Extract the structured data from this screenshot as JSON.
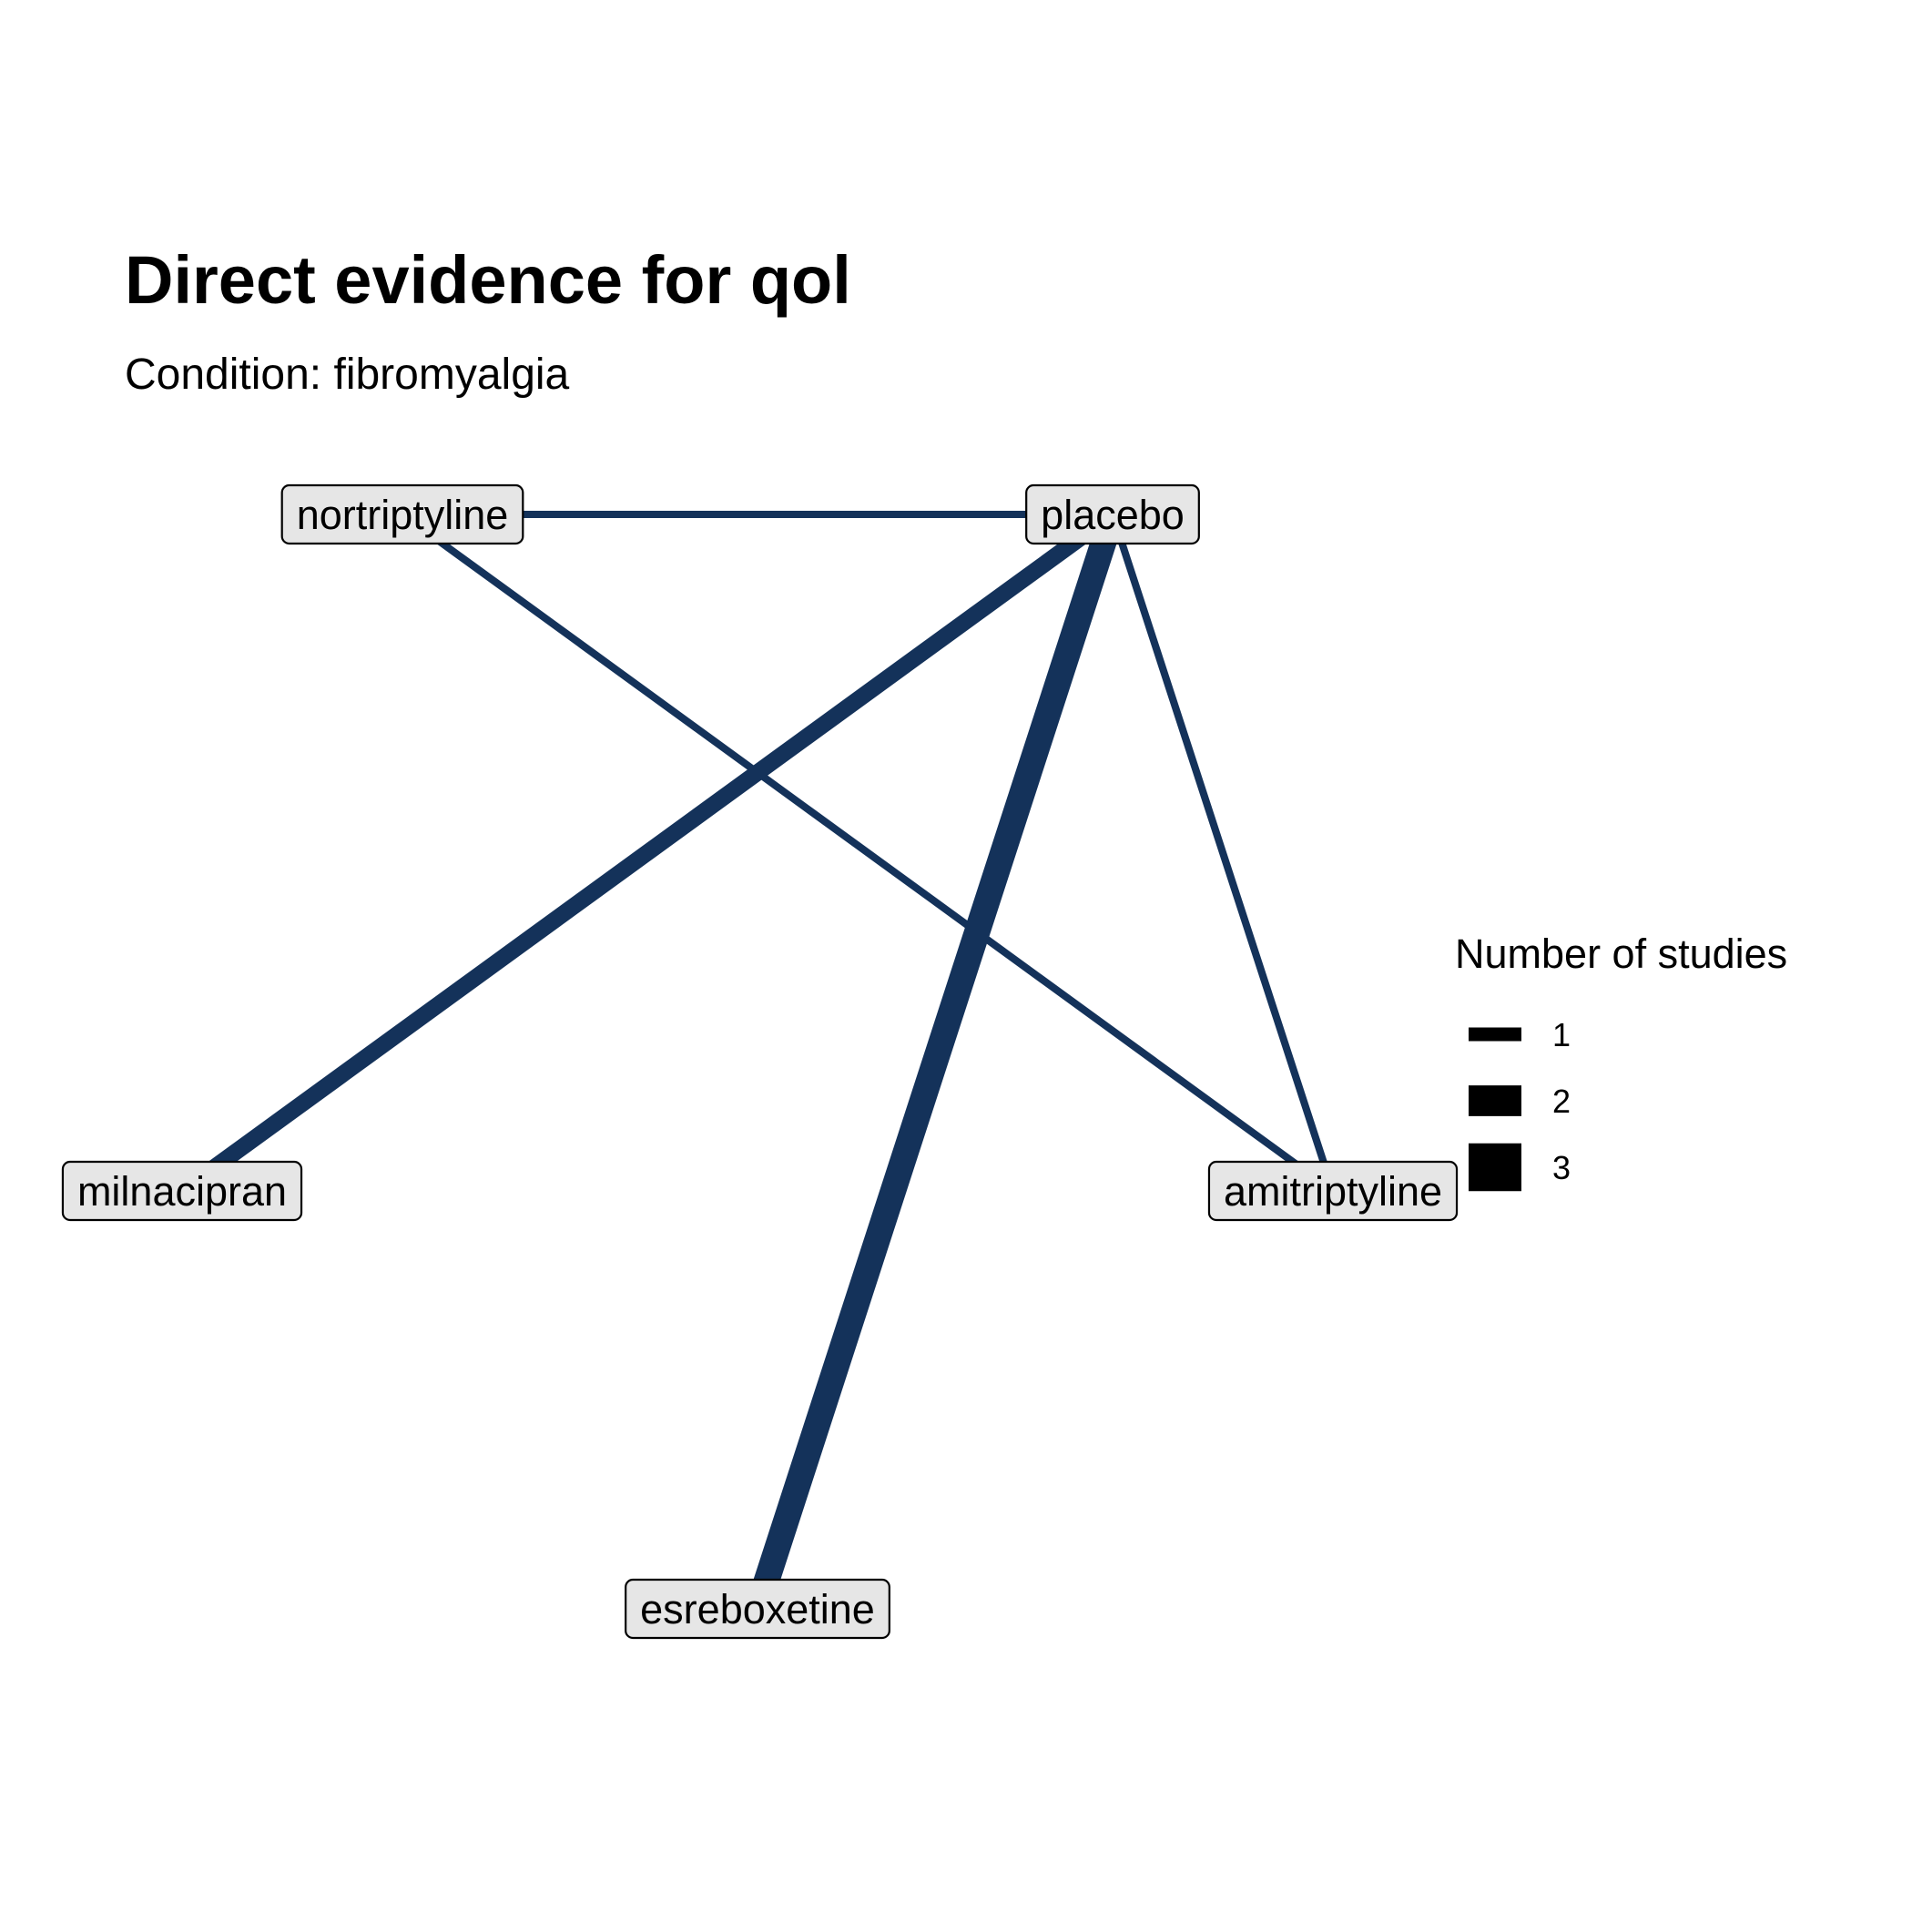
{
  "title": "Direct evidence for qol",
  "subtitle": "Condition: fibromyalgia",
  "colors": {
    "edge": "#14325a",
    "node_fill": "#e6e6e6",
    "node_border": "#000000",
    "legend_key": "#000000"
  },
  "nodes": [
    {
      "id": "nortriptyline",
      "label": "nortriptyline"
    },
    {
      "id": "placebo",
      "label": "placebo"
    },
    {
      "id": "milnacipran",
      "label": "milnacipran"
    },
    {
      "id": "amitriptyline",
      "label": "amitriptyline"
    },
    {
      "id": "esreboxetine",
      "label": "esreboxetine"
    }
  ],
  "edges": [
    {
      "from": "nortriptyline",
      "to": "placebo",
      "studies": 1
    },
    {
      "from": "nortriptyline",
      "to": "amitriptyline",
      "studies": 1
    },
    {
      "from": "placebo",
      "to": "milnacipran",
      "studies": 2
    },
    {
      "from": "placebo",
      "to": "esreboxetine",
      "studies": 3
    },
    {
      "from": "placebo",
      "to": "amitriptyline",
      "studies": 1
    }
  ],
  "legend": {
    "title": "Number of studies",
    "items": [
      {
        "label": "1",
        "studies": 1
      },
      {
        "label": "2",
        "studies": 2
      },
      {
        "label": "3",
        "studies": 3
      }
    ]
  }
}
